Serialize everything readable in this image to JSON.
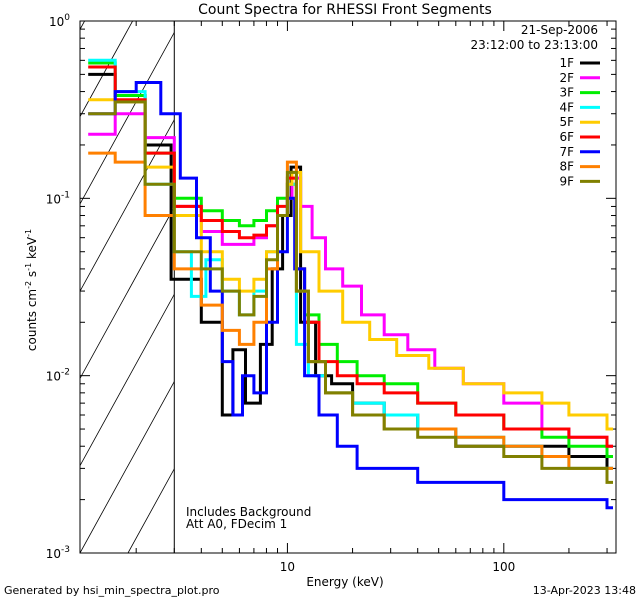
{
  "chart_data": {
    "type": "line",
    "title": "Count Spectra for RHESSI Front Segments",
    "xlabel": "Energy (keV)",
    "ylabel": "counts cm-2 s-1 keV-1",
    "x_scale": "log",
    "y_scale": "log",
    "xlim": [
      1.1,
      330
    ],
    "ylim": [
      0.001,
      1.0
    ],
    "date": "21-Sep-2006",
    "time_range": "23:12:00 to 23:13:00",
    "legend_position": "top-right",
    "annotations": [
      "Includes Background",
      "Att A0, FDecim 1"
    ],
    "footer_left": "Generated by hsi_min_spectra_plot.pro",
    "footer_right": "13-Apr-2023 13:48",
    "x_ticks": [
      {
        "value": 10,
        "label": "10"
      },
      {
        "value": 100,
        "label": "100"
      }
    ],
    "y_ticks": [
      {
        "value": 1.0,
        "label": "10",
        "exp": "0"
      },
      {
        "value": 0.1,
        "label": "10",
        "exp": "-1"
      },
      {
        "value": 0.01,
        "label": "10",
        "exp": "-2"
      },
      {
        "value": 0.001,
        "label": "10",
        "exp": "-3"
      }
    ],
    "hatched_region_xmax": 3.0,
    "series": [
      {
        "name": "1F",
        "color": "#000000",
        "x": [
          1.2,
          1.6,
          2.2,
          2.9,
          4.0,
          5.0,
          5.6,
          6.4,
          7.5,
          8.5,
          9.5,
          10.4,
          11.5,
          13.5,
          16,
          20,
          28,
          40,
          60,
          100,
          150,
          200,
          300
        ],
        "y": [
          0.5,
          0.38,
          0.2,
          0.035,
          0.02,
          0.006,
          0.014,
          0.007,
          0.015,
          0.04,
          0.08,
          0.15,
          0.02,
          0.01,
          0.009,
          0.007,
          0.006,
          0.005,
          0.004,
          0.004,
          0.004,
          0.0035,
          0.003
        ]
      },
      {
        "name": "2F",
        "color": "#ff00ff",
        "x": [
          1.2,
          1.6,
          2.2,
          3.0,
          4.0,
          5.0,
          6.0,
          7.0,
          8.0,
          9.0,
          10.0,
          10.5,
          11.5,
          13,
          15,
          18,
          22,
          28,
          36,
          48,
          65,
          100,
          150,
          200,
          300
        ],
        "y": [
          0.23,
          0.3,
          0.22,
          0.09,
          0.065,
          0.055,
          0.055,
          0.06,
          0.07,
          0.08,
          0.1,
          0.13,
          0.09,
          0.06,
          0.04,
          0.032,
          0.022,
          0.017,
          0.014,
          0.011,
          0.009,
          0.007,
          0.005,
          0.0045,
          0.004
        ]
      },
      {
        "name": "3F",
        "color": "#00ee00",
        "x": [
          1.2,
          1.6,
          2.2,
          3.0,
          4.0,
          5.0,
          6.0,
          7.0,
          8.0,
          9.0,
          10.0,
          11.0,
          12,
          14,
          17,
          21,
          28,
          40,
          60,
          100,
          150,
          200,
          300
        ],
        "y": [
          0.58,
          0.38,
          0.18,
          0.1,
          0.085,
          0.075,
          0.07,
          0.075,
          0.085,
          0.1,
          0.12,
          0.04,
          0.022,
          0.015,
          0.012,
          0.01,
          0.009,
          0.007,
          0.006,
          0.005,
          0.0045,
          0.004,
          0.0035
        ]
      },
      {
        "name": "4F",
        "color": "#00ffff",
        "x": [
          1.2,
          1.6,
          2.2,
          3.0,
          3.6,
          4.2,
          5.0,
          6.0,
          7.0,
          8.0,
          9.0,
          10.0,
          11.0,
          12.5,
          15,
          20,
          28,
          40,
          60,
          100,
          150,
          200,
          300
        ],
        "y": [
          0.6,
          0.4,
          0.12,
          0.05,
          0.028,
          0.045,
          0.03,
          0.022,
          0.03,
          0.05,
          0.08,
          0.12,
          0.015,
          0.01,
          0.008,
          0.007,
          0.006,
          0.005,
          0.0045,
          0.004,
          0.0035,
          0.003,
          0.003
        ]
      },
      {
        "name": "5F",
        "color": "#ffcc00",
        "x": [
          1.2,
          1.6,
          2.2,
          3.0,
          4.0,
          5.0,
          6.0,
          7.0,
          8.0,
          9.0,
          10.0,
          10.5,
          11.5,
          14,
          18,
          24,
          32,
          45,
          65,
          100,
          150,
          200,
          300
        ],
        "y": [
          0.36,
          0.35,
          0.15,
          0.08,
          0.05,
          0.035,
          0.03,
          0.035,
          0.05,
          0.08,
          0.12,
          0.14,
          0.05,
          0.03,
          0.02,
          0.016,
          0.013,
          0.011,
          0.009,
          0.008,
          0.007,
          0.006,
          0.005
        ]
      },
      {
        "name": "6F",
        "color": "#ff0000",
        "x": [
          1.2,
          1.6,
          2.2,
          3.0,
          4.0,
          5.0,
          6.0,
          7.0,
          8.0,
          9.0,
          10.0,
          11.0,
          12,
          14,
          17,
          21,
          28,
          40,
          60,
          100,
          150,
          200,
          300
        ],
        "y": [
          0.55,
          0.36,
          0.18,
          0.09,
          0.075,
          0.065,
          0.06,
          0.062,
          0.07,
          0.09,
          0.13,
          0.04,
          0.02,
          0.012,
          0.01,
          0.009,
          0.008,
          0.007,
          0.006,
          0.005,
          0.005,
          0.0045,
          0.004
        ]
      },
      {
        "name": "7F",
        "color": "#0000ff",
        "x": [
          1.2,
          1.6,
          2.0,
          2.6,
          3.2,
          3.8,
          4.4,
          5.0,
          5.6,
          6.2,
          7.0,
          8.0,
          9.0,
          10.0,
          10.8,
          12,
          14,
          17,
          21,
          28,
          40,
          60,
          100,
          150,
          200,
          300
        ],
        "y": [
          0.3,
          0.4,
          0.45,
          0.3,
          0.13,
          0.06,
          0.03,
          0.012,
          0.006,
          0.01,
          0.008,
          0.02,
          0.05,
          0.1,
          0.04,
          0.01,
          0.006,
          0.004,
          0.003,
          0.003,
          0.0025,
          0.0025,
          0.002,
          0.002,
          0.002,
          0.0018
        ]
      },
      {
        "name": "8F",
        "color": "#ff8000",
        "x": [
          1.2,
          1.6,
          2.2,
          3.0,
          4.0,
          5.0,
          6.0,
          7.0,
          8.0,
          9.0,
          10.0,
          11.0,
          12.5,
          15,
          20,
          28,
          40,
          60,
          100,
          150,
          200,
          300
        ],
        "y": [
          0.18,
          0.16,
          0.08,
          0.04,
          0.025,
          0.018,
          0.015,
          0.02,
          0.04,
          0.08,
          0.16,
          0.03,
          0.012,
          0.008,
          0.006,
          0.005,
          0.005,
          0.0045,
          0.004,
          0.0035,
          0.003,
          0.003
        ]
      },
      {
        "name": "9F",
        "color": "#808000",
        "x": [
          1.2,
          1.6,
          2.2,
          3.0,
          4.0,
          5.0,
          6.0,
          7.0,
          8.0,
          9.0,
          10.0,
          11.0,
          12.5,
          15,
          20,
          28,
          40,
          60,
          100,
          150,
          200,
          300
        ],
        "y": [
          0.3,
          0.35,
          0.12,
          0.05,
          0.04,
          0.03,
          0.022,
          0.028,
          0.045,
          0.08,
          0.14,
          0.03,
          0.012,
          0.008,
          0.006,
          0.005,
          0.0045,
          0.004,
          0.0035,
          0.003,
          0.003,
          0.0025
        ]
      }
    ]
  }
}
